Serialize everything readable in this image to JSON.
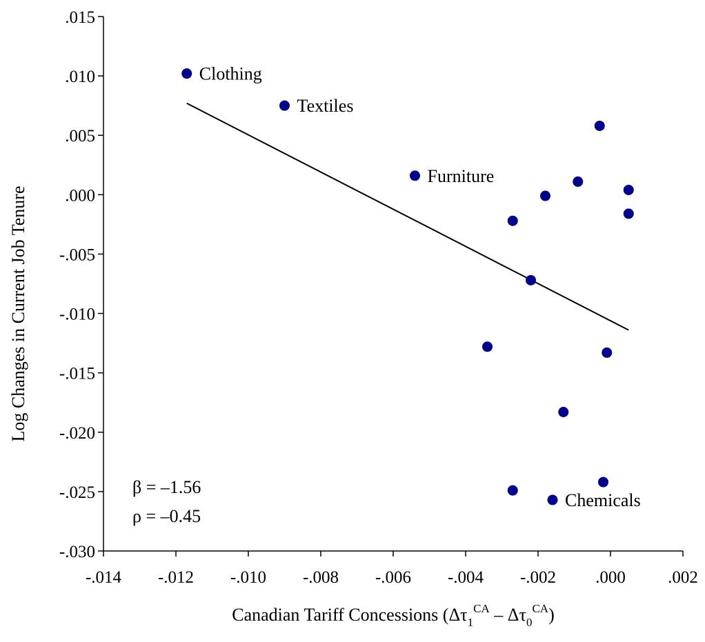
{
  "chart_data": {
    "type": "scatter",
    "xlabel_parts": {
      "prefix": "Canadian Tariff Concessions (Δτ",
      "sub1": "1",
      "sup1": "CA",
      "mid": " – Δτ",
      "sub2": "0",
      "sup2": "CA",
      "suffix": ")"
    },
    "ylabel": "Log Changes in Current Job Tenure",
    "xlim": [
      -0.014,
      0.002
    ],
    "ylim": [
      -0.03,
      0.015
    ],
    "x_ticks": [
      -0.014,
      -0.012,
      -0.01,
      -0.008,
      -0.006,
      -0.004,
      -0.002,
      0.0,
      0.002
    ],
    "x_tick_labels": [
      "-.014",
      "-.012",
      "-.010",
      "-.008",
      "-.006",
      "-.004",
      "-.002",
      ".000",
      ".002"
    ],
    "y_ticks": [
      0.015,
      0.01,
      0.005,
      0.0,
      -0.005,
      -0.01,
      -0.015,
      -0.02,
      -0.025,
      -0.03
    ],
    "y_tick_labels": [
      ".015",
      ".010",
      ".005",
      ".000",
      "-.005",
      "-.010",
      "-.015",
      "-.020",
      "-.025",
      "-.030"
    ],
    "marker_color": "#00008B",
    "points": [
      {
        "x": -0.0117,
        "y": 0.0102,
        "label": "Clothing"
      },
      {
        "x": -0.009,
        "y": 0.0075,
        "label": "Textiles"
      },
      {
        "x": -0.0054,
        "y": 0.0016,
        "label": "Furniture"
      },
      {
        "x": -0.0003,
        "y": 0.0058,
        "label": ""
      },
      {
        "x": -0.0009,
        "y": 0.0011,
        "label": ""
      },
      {
        "x": -0.0018,
        "y": -0.0001,
        "label": ""
      },
      {
        "x": 0.0005,
        "y": 0.0004,
        "label": ""
      },
      {
        "x": 0.0005,
        "y": -0.0016,
        "label": ""
      },
      {
        "x": -0.0027,
        "y": -0.0022,
        "label": ""
      },
      {
        "x": -0.0022,
        "y": -0.0072,
        "label": ""
      },
      {
        "x": -0.0034,
        "y": -0.0128,
        "label": ""
      },
      {
        "x": -0.0001,
        "y": -0.0133,
        "label": ""
      },
      {
        "x": -0.0013,
        "y": -0.0183,
        "label": ""
      },
      {
        "x": -0.0002,
        "y": -0.0242,
        "label": ""
      },
      {
        "x": -0.0027,
        "y": -0.0249,
        "label": ""
      },
      {
        "x": -0.0016,
        "y": -0.0257,
        "label": "Chemicals"
      }
    ],
    "fit_line": {
      "x": [
        -0.0117,
        0.0005
      ],
      "y": [
        0.0077,
        -0.0114
      ]
    },
    "annotations": [
      "β = –1.56",
      "ρ = –0.45"
    ],
    "grid": false
  }
}
